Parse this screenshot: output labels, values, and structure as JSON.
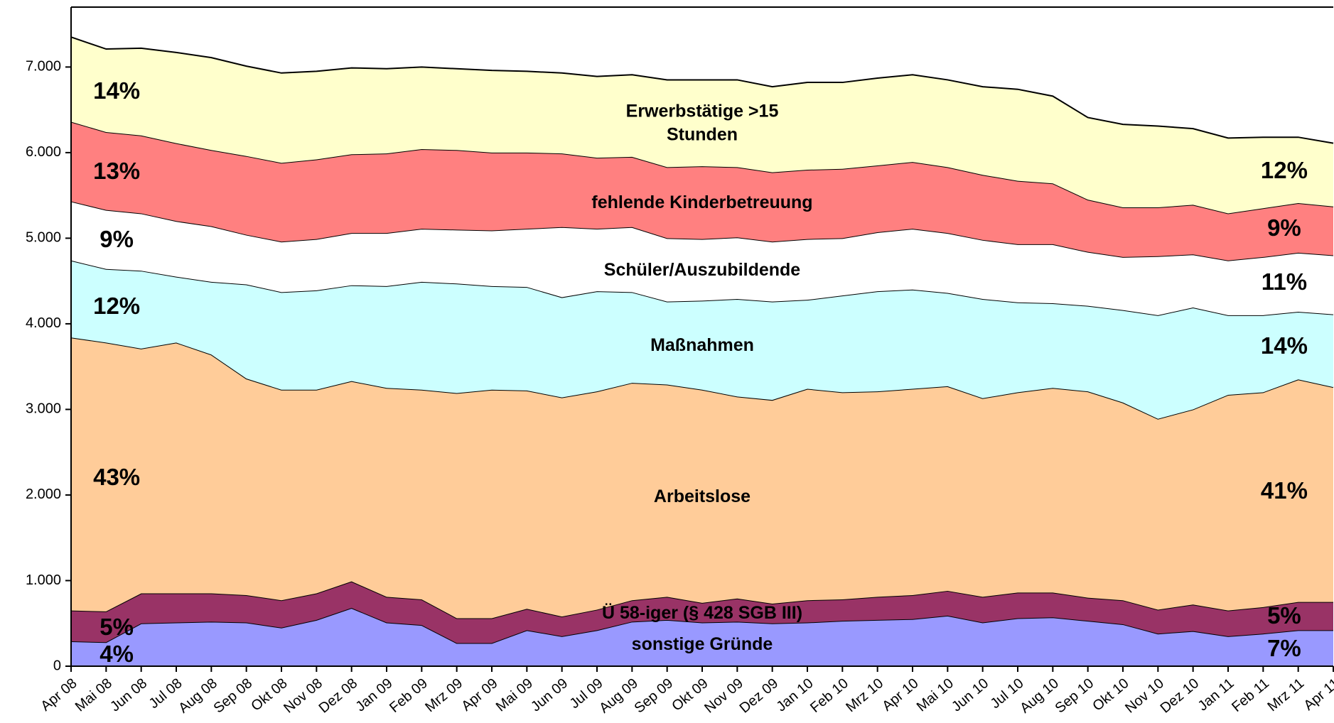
{
  "chart_data": {
    "type": "stacked_area",
    "categories": [
      "Apr 08",
      "Mai 08",
      "Jun 08",
      "Jul 08",
      "Aug 08",
      "Sep 08",
      "Okt 08",
      "Nov 08",
      "Dez 08",
      "Jan 09",
      "Feb 09",
      "Mrz 09",
      "Apr 09",
      "Mai 09",
      "Jun 09",
      "Jul 09",
      "Aug 09",
      "Sep 09",
      "Okt 09",
      "Nov 09",
      "Dez 09",
      "Jan 10",
      "Feb 10",
      "Mrz 10",
      "Apr 10",
      "Mai 10",
      "Jun 10",
      "Jul 10",
      "Aug 10",
      "Sep 10",
      "Okt 10",
      "Nov 10",
      "Dez 10",
      "Jan 11",
      "Feb 11",
      "Mrz 11",
      "Apr 11"
    ],
    "series": [
      {
        "name": "sonstige Gründe",
        "color": "#9999ff",
        "labels": [
          "4%",
          "7%"
        ],
        "values": [
          290,
          280,
          500,
          510,
          520,
          510,
          450,
          540,
          680,
          510,
          480,
          270,
          270,
          420,
          350,
          420,
          520,
          540,
          510,
          520,
          500,
          510,
          530,
          540,
          550,
          590,
          510,
          560,
          570,
          530,
          490,
          380,
          410,
          350,
          380,
          420,
          420
        ]
      },
      {
        "name": "Ü 58-iger (§ 428 SGB III)",
        "color": "#993366",
        "labels": [
          "5%",
          "5%"
        ],
        "values": [
          360,
          360,
          350,
          340,
          330,
          320,
          320,
          310,
          310,
          300,
          300,
          290,
          290,
          250,
          230,
          240,
          250,
          270,
          230,
          270,
          230,
          260,
          250,
          270,
          280,
          290,
          300,
          300,
          290,
          270,
          280,
          280,
          310,
          300,
          310,
          330,
          330
        ]
      },
      {
        "name": "Arbeitslose",
        "color": "#ffcc99",
        "labels": [
          "43%",
          "41%"
        ],
        "values": [
          3190,
          3140,
          2860,
          2930,
          2790,
          2530,
          2460,
          2380,
          2340,
          2440,
          2450,
          2630,
          2670,
          2550,
          2560,
          2550,
          2540,
          2480,
          2490,
          2360,
          2380,
          2470,
          2420,
          2400,
          2410,
          2390,
          2320,
          2340,
          2390,
          2410,
          2310,
          2230,
          2280,
          2520,
          2510,
          2600,
          2510
        ]
      },
      {
        "name": "Maßnahmen",
        "color": "#ccffff",
        "labels": [
          "12%",
          "14%"
        ],
        "values": [
          900,
          860,
          910,
          770,
          850,
          1100,
          1140,
          1160,
          1120,
          1190,
          1260,
          1280,
          1210,
          1210,
          1170,
          1170,
          1060,
          970,
          1040,
          1140,
          1150,
          1040,
          1130,
          1170,
          1160,
          1090,
          1160,
          1050,
          990,
          1000,
          1080,
          1210,
          1190,
          930,
          900,
          790,
          850
        ]
      },
      {
        "name": "Schüler/Auszubildende",
        "color": "#ffffff",
        "labels": [
          "9%",
          "11%"
        ],
        "values": [
          690,
          690,
          670,
          650,
          650,
          580,
          590,
          600,
          610,
          620,
          620,
          630,
          650,
          680,
          820,
          730,
          760,
          740,
          720,
          720,
          700,
          710,
          670,
          690,
          710,
          700,
          690,
          680,
          690,
          630,
          620,
          690,
          620,
          640,
          680,
          690,
          690
        ]
      },
      {
        "name": "fehlende Kinderbetreuung",
        "color": "#ff8080",
        "labels": [
          "13%",
          "9%"
        ],
        "values": [
          930,
          910,
          910,
          910,
          890,
          920,
          920,
          930,
          920,
          930,
          930,
          930,
          910,
          890,
          860,
          830,
          820,
          830,
          850,
          820,
          810,
          810,
          810,
          780,
          780,
          770,
          760,
          740,
          710,
          610,
          580,
          570,
          580,
          550,
          570,
          580,
          570
        ]
      },
      {
        "name": "Erwerbstätige >15 Stunden",
        "color": "#ffffcc",
        "labels": [
          "14%",
          "12%"
        ],
        "values": [
          990,
          970,
          1020,
          1060,
          1080,
          1050,
          1050,
          1030,
          1010,
          990,
          960,
          950,
          960,
          950,
          940,
          950,
          960,
          1020,
          1010,
          1020,
          1000,
          1020,
          1010,
          1020,
          1020,
          1020,
          1030,
          1070,
          1020,
          960,
          970,
          950,
          890,
          880,
          830,
          770,
          740
        ]
      }
    ],
    "ylim": [
      0,
      7700
    ],
    "yticks": [
      0,
      {
        "value": 1000,
        "label": "1.000"
      },
      {
        "value": 2000,
        "label": "2.000"
      },
      {
        "value": 3000,
        "label": "3.000"
      },
      {
        "value": 4000,
        "label": "4.000"
      },
      {
        "value": 5000,
        "label": "5.000"
      },
      {
        "value": 6000,
        "label": "6.000"
      },
      {
        "value": 7000,
        "label": "7.000"
      }
    ]
  }
}
